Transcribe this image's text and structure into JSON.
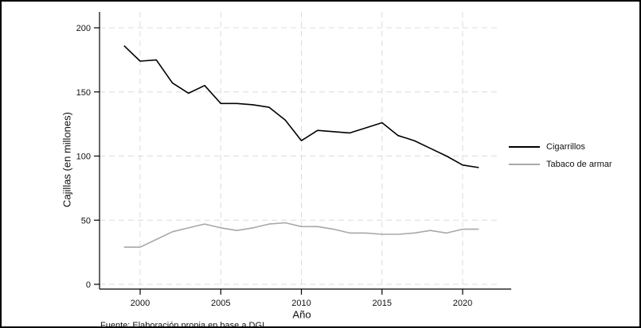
{
  "source_note": "Fuente: Elaboración propia en base a DGI",
  "chart_data": {
    "type": "line",
    "title": "",
    "xlabel": "Año",
    "ylabel": "Cajillas (en millones)",
    "x": [
      1999,
      2000,
      2001,
      2002,
      2003,
      2004,
      2005,
      2006,
      2007,
      2008,
      2009,
      2010,
      2011,
      2012,
      2013,
      2014,
      2015,
      2016,
      2017,
      2018,
      2019,
      2020,
      2021
    ],
    "series": [
      {
        "name": "Cigarrillos",
        "color": "#000000",
        "values": [
          186,
          174,
          175,
          157,
          149,
          155,
          141,
          141,
          140,
          138,
          128,
          112,
          120,
          119,
          118,
          122,
          126,
          116,
          112,
          106,
          100,
          93,
          91
        ]
      },
      {
        "name": "Tabaco de armar",
        "color": "#a8a8a8",
        "values": [
          29,
          29,
          35,
          41,
          44,
          47,
          44,
          42,
          44,
          47,
          48,
          45,
          45,
          43,
          40,
          40,
          39,
          39,
          40,
          42,
          40,
          43,
          43
        ]
      }
    ],
    "xticks": [
      2000,
      2005,
      2010,
      2015,
      2020
    ],
    "yticks": [
      0,
      50,
      100,
      150,
      200
    ],
    "ylim": [
      0,
      200
    ],
    "xlim": [
      1997.5,
      2022.5
    ],
    "grid": "dashed horizontal and vertical",
    "gridline_color": "#dcdcdc",
    "axis_color": "#000000",
    "legend_position": "right-outside"
  }
}
